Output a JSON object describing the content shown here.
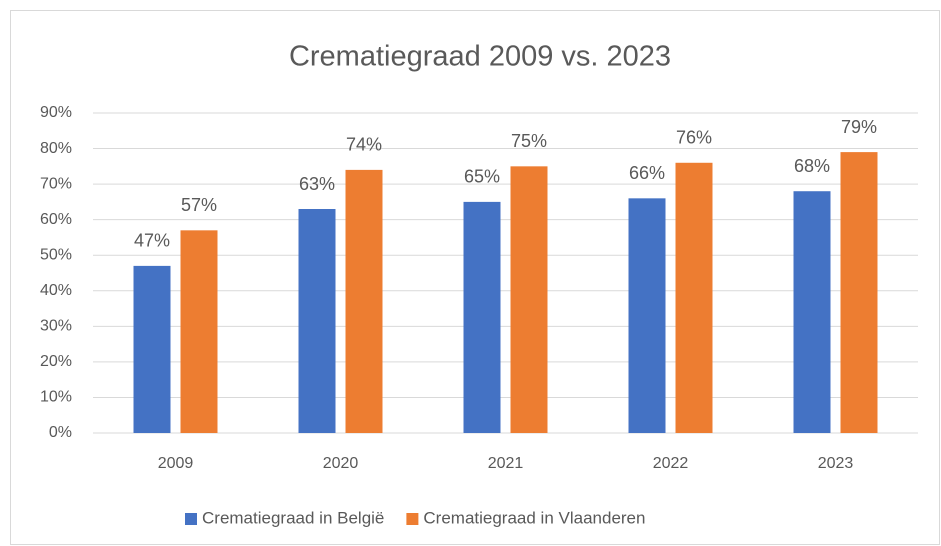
{
  "chart_data": {
    "type": "bar",
    "title": "Crematiegraad 2009 vs. 2023",
    "categories": [
      "2009",
      "2020",
      "2021",
      "2022",
      "2023"
    ],
    "series": [
      {
        "name": "Crematiegraad in België",
        "color": "#4472c4",
        "values": [
          47,
          63,
          65,
          66,
          68
        ],
        "value_labels": [
          "47%",
          "63%",
          "65%",
          "66%",
          "68%"
        ]
      },
      {
        "name": "Crematiegraad in Vlaanderen",
        "color": "#ed7d31",
        "values": [
          57,
          74,
          75,
          76,
          79
        ],
        "value_labels": [
          "57%",
          "74%",
          "75%",
          "76%",
          "79%"
        ]
      }
    ],
    "ylim": [
      0,
      90
    ],
    "yticks": [
      {
        "value": 0,
        "label": "0%"
      },
      {
        "value": 10,
        "label": "10%"
      },
      {
        "value": 20,
        "label": "20%"
      },
      {
        "value": 30,
        "label": "30%"
      },
      {
        "value": 40,
        "label": "40%"
      },
      {
        "value": 50,
        "label": "50%"
      },
      {
        "value": 60,
        "label": "60%"
      },
      {
        "value": 70,
        "label": "70%"
      },
      {
        "value": 80,
        "label": "80%"
      },
      {
        "value": 90,
        "label": "90%"
      }
    ],
    "grid": true,
    "legend": "bottom"
  }
}
